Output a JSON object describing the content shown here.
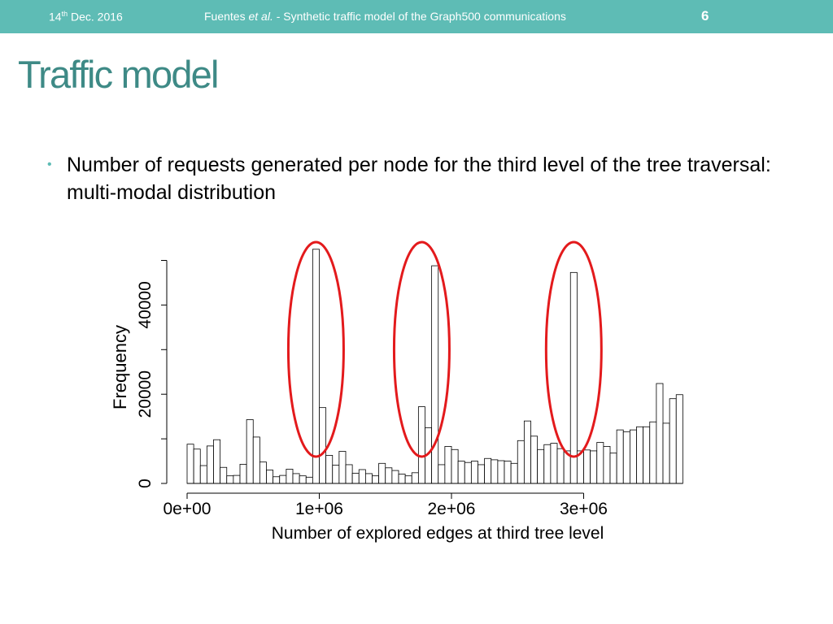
{
  "header": {
    "date_day": "14",
    "date_sup": "th",
    "date_rest": " Dec. 2016",
    "author": "Fuentes",
    "etal": "et al.",
    "subtitle": " - Synthetic traffic model of the Graph500 communications",
    "page_number": "6"
  },
  "slide": {
    "title": "Traffic model",
    "bullet": "Number of requests generated per node for the third level of the tree traversal: multi-modal distribution"
  },
  "colors": {
    "header_bg": "#5ebcb5",
    "title": "#3e8a86",
    "highlight_ellipse": "#e31a1c"
  },
  "chart_data": {
    "type": "bar",
    "subtype": "histogram",
    "xlabel": "Number of explored edges at third tree level",
    "ylabel": "Frequency",
    "x_ticks": [
      "0e+00",
      "1e+06",
      "2e+06",
      "3e+06"
    ],
    "x_tick_values": [
      0,
      1000000,
      2000000,
      3000000
    ],
    "y_ticks": [
      "0",
      "20000",
      "40000"
    ],
    "y_tick_values": [
      0,
      20000,
      40000
    ],
    "xlim": [
      0,
      3800000
    ],
    "ylim": [
      0,
      50000
    ],
    "bin_width": 50000,
    "bin_start": 0,
    "values": [
      8800,
      7700,
      4000,
      8400,
      9800,
      3600,
      1700,
      1800,
      4300,
      14300,
      10400,
      4800,
      3000,
      1500,
      1800,
      3200,
      2200,
      1700,
      1400,
      52500,
      17000,
      6300,
      4100,
      7200,
      4200,
      2300,
      3100,
      2200,
      1700,
      4500,
      3500,
      2900,
      2100,
      1700,
      2400,
      17200,
      12500,
      48800,
      4200,
      8300,
      7600,
      5000,
      4700,
      5000,
      4200,
      5600,
      5300,
      5100,
      5000,
      4500,
      9600,
      14000,
      10600,
      7600,
      8700,
      9000,
      7800,
      7300,
      47300,
      7300,
      7500,
      7300,
      9200,
      8300,
      6800,
      12000,
      11600,
      12000,
      12700,
      12700,
      13800,
      22400,
      13500,
      19000,
      19900
    ],
    "highlighted_peaks_x": [
      975000,
      1775000,
      2925000
    ]
  }
}
